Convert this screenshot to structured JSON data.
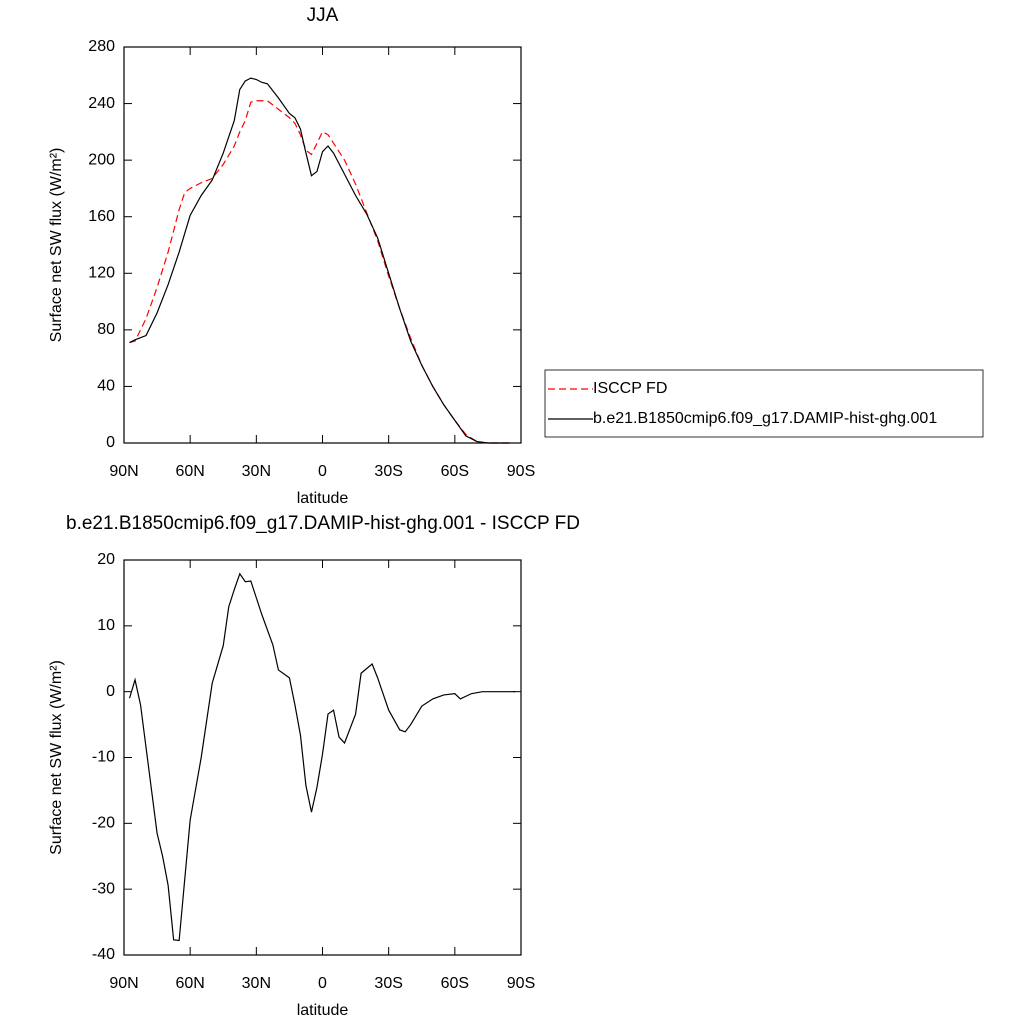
{
  "chart_data": [
    {
      "type": "line",
      "title": "JJA",
      "x_label": "latitude",
      "y_label": "Surface net SW flux (W/m²)",
      "x": [
        87.5,
        85,
        80,
        75,
        70,
        65,
        62.5,
        60,
        55,
        50,
        45,
        40,
        37.5,
        35,
        32.5,
        30,
        27.5,
        25,
        20,
        15,
        12.5,
        10,
        7.5,
        5,
        2.5,
        0,
        -2.5,
        -5,
        -10,
        -15,
        -20,
        -25,
        -30,
        -35,
        -40,
        -45,
        -50,
        -55,
        -60,
        -65,
        -70,
        -75,
        -80,
        -85
      ],
      "series": [
        {
          "name": "ISCCP FD",
          "color": "#ff0000",
          "line_style": "dashed",
          "values": [
            71,
            72,
            88,
            110,
            135,
            165,
            177,
            180,
            184,
            187,
            197,
            210,
            220,
            228,
            241,
            242,
            242,
            242,
            236,
            230,
            226,
            218,
            207,
            204,
            212,
            220,
            218,
            212,
            200,
            183,
            163,
            143,
            118,
            95,
            74,
            55,
            40,
            27,
            16,
            6,
            1,
            0,
            0,
            0
          ]
        },
        {
          "name": "b.e21.B1850cmip6.f09_g17.DAMIP-hist-ghg.001",
          "color": "#000000",
          "line_style": "solid",
          "values": [
            71,
            73,
            76,
            92,
            112,
            135,
            148,
            161,
            175,
            186,
            205,
            228,
            250,
            256,
            258,
            257,
            255,
            254,
            244,
            233,
            230,
            222,
            205,
            189,
            192,
            206,
            210,
            205,
            190,
            175,
            162,
            145,
            120,
            95,
            72,
            55,
            40,
            27,
            16,
            5,
            1,
            0,
            0,
            0
          ]
        }
      ],
      "xlim": [
        90,
        -90
      ],
      "xticks": [
        {
          "value": 90,
          "label": "90N"
        },
        {
          "value": 60,
          "label": "60N"
        },
        {
          "value": 30,
          "label": "30N"
        },
        0,
        {
          "value": -30,
          "label": "30S"
        },
        {
          "value": -60,
          "label": "60S"
        },
        {
          "value": -90,
          "label": "90S"
        }
      ],
      "ylim": [
        0,
        280
      ],
      "yticks": [
        0,
        40,
        80,
        120,
        160,
        200,
        240,
        280
      ],
      "legend": "right"
    },
    {
      "type": "line",
      "title": "b.e21.B1850cmip6.f09_g17.DAMIP-hist-ghg.001 - ISCCP FD",
      "x_label": "latitude",
      "y_label": "Surface net SW flux (W/m²)",
      "x": [
        87.5,
        85,
        82.5,
        77.5,
        75,
        72.5,
        70,
        67.5,
        65,
        60,
        55,
        50,
        45,
        42.5,
        40,
        37.5,
        35,
        32.5,
        27.5,
        22.5,
        20,
        15,
        12.5,
        10,
        7.5,
        5,
        2.5,
        0,
        -2.5,
        -5,
        -7.5,
        -10,
        -15,
        -17.5,
        -22.5,
        -25,
        -30,
        -35,
        -37.5,
        -40,
        -45,
        -50,
        -55,
        -60,
        -62.5,
        -67.5,
        -72.5,
        -87.5
      ],
      "series": [
        {
          "color": "#000000",
          "line_style": "solid",
          "values": [
            -1,
            1.8,
            -2,
            -15,
            -21.5,
            -25,
            -29.4,
            -37.7,
            -37.8,
            -19.5,
            -10,
            1.3,
            7,
            12.9,
            15.5,
            17.9,
            16.7,
            16.8,
            11.7,
            7.1,
            3.3,
            2.1,
            -2,
            -6.6,
            -14.3,
            -18.3,
            -14.5,
            -9.5,
            -3.4,
            -2.8,
            -6.9,
            -7.8,
            -3.4,
            2.8,
            4.2,
            2.1,
            -2.8,
            -5.8,
            -6.1,
            -5,
            -2.2,
            -1.1,
            -0.5,
            -0.3,
            -1.1,
            -0.3,
            0,
            0
          ]
        }
      ],
      "xlim": [
        90,
        -90
      ],
      "xticks": [
        {
          "value": 90,
          "label": "90N"
        },
        {
          "value": 60,
          "label": "60N"
        },
        {
          "value": 30,
          "label": "30N"
        },
        0,
        {
          "value": -30,
          "label": "30S"
        },
        {
          "value": -60,
          "label": "60S"
        },
        {
          "value": -90,
          "label": "90S"
        }
      ],
      "ylim": [
        -40,
        20
      ],
      "yticks": [
        -40,
        -30,
        -20,
        -10,
        0,
        10,
        20
      ]
    }
  ]
}
